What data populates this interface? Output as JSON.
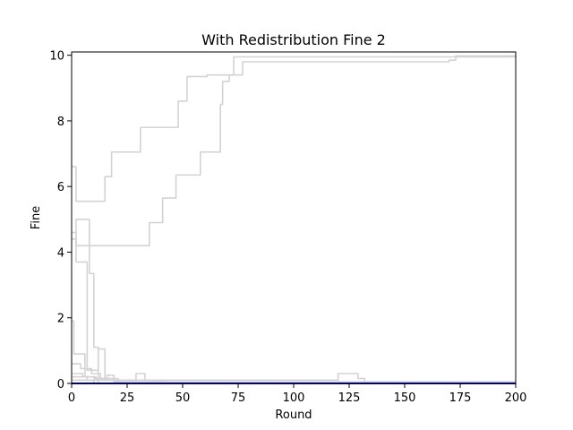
{
  "chart_data": {
    "type": "line",
    "title": "With Redistribution Fine 2",
    "xlabel": "Round",
    "ylabel": "Fine",
    "xlim": [
      0,
      200
    ],
    "ylim": [
      0,
      10.1
    ],
    "xticks": [
      0,
      25,
      50,
      75,
      100,
      125,
      150,
      175,
      200
    ],
    "yticks": [
      0,
      2,
      4,
      6,
      8,
      10
    ],
    "grid": false,
    "legend": "none",
    "colors": {
      "gray_series": "#d3d3d3",
      "mean_series": "#0000ff"
    },
    "series": [
      {
        "color": "#d3d3d3",
        "x": [
          0,
          1,
          2,
          4,
          8,
          10,
          15,
          17,
          18,
          30,
          31,
          47,
          48,
          51,
          52,
          60,
          61,
          72,
          73,
          200
        ],
        "y": [
          6.6,
          6.6,
          5.55,
          5.55,
          5.55,
          5.55,
          6.3,
          6.3,
          7.05,
          7.05,
          7.8,
          7.8,
          8.6,
          8.6,
          9.35,
          9.35,
          9.4,
          9.4,
          9.95,
          10.0
        ]
      },
      {
        "color": "#d3d3d3",
        "x": [
          0,
          1,
          2,
          4,
          6,
          8,
          34,
          35,
          40,
          41,
          46,
          47,
          57,
          58,
          63,
          64,
          67,
          68,
          70,
          71,
          76,
          77,
          165,
          170,
          172,
          173,
          200
        ],
        "y": [
          4.6,
          4.6,
          4.2,
          4.2,
          4.2,
          4.2,
          4.2,
          4.9,
          4.9,
          5.65,
          5.65,
          6.35,
          6.35,
          7.05,
          7.05,
          7.05,
          8.5,
          9.2,
          9.2,
          9.4,
          9.4,
          9.8,
          9.8,
          9.85,
          9.85,
          9.98,
          9.98
        ]
      },
      {
        "color": "#d3d3d3",
        "x": [
          0,
          1,
          2,
          3,
          7,
          8,
          9,
          10,
          12,
          30,
          31
        ],
        "y": [
          4.4,
          4.4,
          5.0,
          5.0,
          5.0,
          3.35,
          3.35,
          1.1,
          0.0,
          0.0,
          0.0
        ]
      },
      {
        "color": "#d3d3d3",
        "x": [
          0,
          1,
          2,
          4,
          5,
          6,
          7,
          11,
          12,
          14,
          15,
          20,
          21,
          40
        ],
        "y": [
          4.4,
          4.4,
          3.7,
          3.7,
          3.7,
          3.7,
          0.4,
          0.4,
          1.05,
          1.05,
          0.1,
          0.1,
          0.0,
          0.0
        ]
      },
      {
        "color": "#d3d3d3",
        "x": [
          0,
          1,
          5,
          6,
          10,
          11,
          20,
          21,
          28,
          29,
          32,
          33,
          42
        ],
        "y": [
          1.9,
          0.9,
          0.9,
          0.2,
          0.2,
          0.1,
          0.1,
          0.1,
          0.1,
          0.3,
          0.3,
          0.1,
          0.1
        ]
      },
      {
        "color": "#d3d3d3",
        "x": [
          0,
          3,
          4,
          8,
          9,
          12,
          13,
          20,
          21,
          38,
          39,
          42
        ],
        "y": [
          0.6,
          0.6,
          0.45,
          0.45,
          0.3,
          0.3,
          0.15,
          0.15,
          0.1,
          0.1,
          0.05,
          0.05
        ]
      },
      {
        "color": "#d3d3d3",
        "x": [
          0,
          4,
          5,
          9,
          10,
          15,
          16,
          18,
          19,
          200
        ],
        "y": [
          0.3,
          0.3,
          0.2,
          0.2,
          0.15,
          0.15,
          0.25,
          0.25,
          0.05,
          0.05
        ]
      },
      {
        "color": "#d3d3d3",
        "x": [
          0,
          119,
          120,
          128,
          129,
          131,
          132,
          200
        ],
        "y": [
          0.1,
          0.1,
          0.3,
          0.3,
          0.15,
          0.15,
          0.05,
          0.05
        ]
      },
      {
        "color": "#d3d3d3",
        "x": [
          0,
          6,
          7,
          9,
          10,
          200
        ],
        "y": [
          0.2,
          0.2,
          0.1,
          0.1,
          0.0,
          0.0
        ]
      },
      {
        "color": "#0000ff",
        "x": [
          0,
          200
        ],
        "y": [
          0.0,
          0.0
        ]
      }
    ]
  }
}
